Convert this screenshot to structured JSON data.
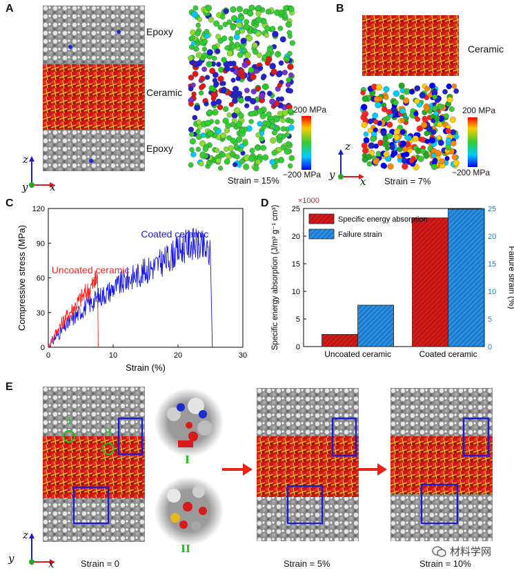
{
  "panels": {
    "a": {
      "label": "A",
      "layers": [
        "Epoxy",
        "Ceramic",
        "Epoxy"
      ],
      "axes": {
        "z": "z",
        "y": "y",
        "x": "x"
      },
      "strain": "Strain = 15%",
      "colorbar": {
        "max": "200 MPa",
        "min": "−200 MPa"
      }
    },
    "b": {
      "label": "B",
      "title": "Ceramic",
      "axes": {
        "z": "z",
        "y": "y",
        "x": "x"
      },
      "strain": "Strain = 7%",
      "colorbar": {
        "max": "200 MPa",
        "min": "−200 MPa"
      }
    },
    "c": {
      "label": "C"
    },
    "d": {
      "label": "D",
      "multiplier": "×1000"
    },
    "e": {
      "label": "E",
      "axes": {
        "z": "z",
        "y": "y",
        "x": "x"
      },
      "markers": [
        "I",
        "II"
      ],
      "strains": [
        "Strain = 0",
        "Strain = 5%",
        "Strain = 10%"
      ],
      "watermark": "材料学网"
    }
  },
  "chart_data": [
    {
      "id": "C",
      "type": "line",
      "xlabel": "Strain (%)",
      "ylabel": "Compressive stress (MPa)",
      "xlim": [
        0,
        30
      ],
      "ylim": [
        0,
        120
      ],
      "xticks": [
        0,
        10,
        20,
        30
      ],
      "yticks": [
        0,
        30,
        60,
        90,
        120
      ],
      "series": [
        {
          "name": "Coated ceramic",
          "color": "#1414e6",
          "x": [
            0,
            1,
            2,
            3,
            4,
            5,
            6,
            7,
            8,
            9,
            10,
            11,
            12,
            13,
            14,
            15,
            16,
            17,
            18,
            19,
            20,
            21,
            22,
            23,
            24,
            25,
            25.3
          ],
          "y": [
            0,
            8,
            14,
            20,
            26,
            31,
            36,
            40,
            44,
            47,
            51,
            54,
            58,
            61,
            63,
            66,
            69,
            72,
            75,
            79,
            83,
            87,
            90,
            88,
            85,
            80,
            0
          ]
        },
        {
          "name": "Uncoated ceramic",
          "color": "#ff2020",
          "x": [
            0,
            1,
            2,
            3,
            4,
            5,
            6,
            7,
            7.6,
            7.7
          ],
          "y": [
            0,
            11,
            20,
            28,
            35,
            42,
            48,
            55,
            60,
            0
          ]
        }
      ]
    },
    {
      "id": "D",
      "type": "bar",
      "categories": [
        "Uncoated ceramic",
        "Coated ceramic"
      ],
      "ylabel_left": "Specific energy absorption (J/m³ g⁻¹ cm³)",
      "ylabel_right": "Failure strain (%)",
      "ylim_left": [
        0,
        25
      ],
      "ylim_right": [
        0,
        25
      ],
      "yticks": [
        0,
        5,
        10,
        15,
        20,
        25
      ],
      "series": [
        {
          "name": "Specific energy absorption",
          "axis": "left",
          "color": "#d11a1a",
          "values": [
            2.2,
            23.3
          ]
        },
        {
          "name": "Failure strain",
          "axis": "right",
          "color": "#1c7fd6",
          "values": [
            7.5,
            24.9
          ]
        }
      ]
    }
  ]
}
